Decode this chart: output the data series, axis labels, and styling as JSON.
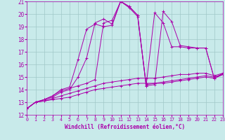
{
  "xlabel": "Windchill (Refroidissement éolien,°C)",
  "xlim": [
    0,
    23
  ],
  "ylim": [
    12,
    21
  ],
  "xticks": [
    0,
    1,
    2,
    3,
    4,
    5,
    6,
    7,
    8,
    9,
    10,
    11,
    12,
    13,
    14,
    15,
    16,
    17,
    18,
    19,
    20,
    21,
    22,
    23
  ],
  "yticks": [
    12,
    13,
    14,
    15,
    16,
    17,
    18,
    19,
    20,
    21
  ],
  "bg_color": "#c8eaea",
  "line_color": "#aa00aa",
  "grid_color": "#a0c8c8",
  "lines": [
    {
      "x": [
        0,
        1,
        2,
        3,
        4,
        5,
        6,
        7,
        8,
        9,
        10,
        11,
        12,
        13,
        14,
        15,
        16,
        17,
        18,
        19,
        20,
        21,
        22,
        23
      ],
      "y": [
        12.5,
        13.0,
        13.1,
        13.2,
        13.3,
        13.4,
        13.6,
        13.8,
        14.0,
        14.1,
        14.2,
        14.3,
        14.4,
        14.5,
        14.5,
        14.5,
        14.6,
        14.7,
        14.8,
        14.9,
        15.0,
        15.1,
        15.0,
        15.2
      ]
    },
    {
      "x": [
        0,
        1,
        2,
        3,
        4,
        5,
        6,
        7,
        8,
        9,
        10,
        11,
        12,
        13,
        14,
        15,
        16,
        17,
        18,
        19,
        20,
        21,
        22,
        23
      ],
      "y": [
        12.5,
        13.0,
        13.1,
        13.3,
        13.5,
        13.7,
        13.9,
        14.1,
        14.3,
        14.5,
        14.6,
        14.7,
        14.8,
        14.9,
        14.9,
        14.9,
        15.0,
        15.1,
        15.2,
        15.2,
        15.3,
        15.3,
        15.1,
        15.3
      ]
    },
    {
      "x": [
        0,
        1,
        2,
        3,
        4,
        5,
        6,
        7,
        8,
        9,
        10,
        11,
        12,
        13,
        14,
        15,
        16,
        17,
        18,
        19,
        20,
        21,
        22,
        23
      ],
      "y": [
        12.5,
        13.0,
        13.2,
        13.5,
        13.9,
        14.1,
        14.3,
        14.5,
        14.8,
        19.3,
        19.5,
        21.0,
        20.5,
        19.8,
        14.4,
        14.5,
        14.5,
        14.6,
        14.7,
        14.8,
        14.9,
        15.0,
        14.9,
        15.2
      ]
    },
    {
      "x": [
        0,
        1,
        2,
        3,
        4,
        5,
        6,
        7,
        8,
        9,
        10,
        11,
        12,
        13,
        14,
        15,
        16,
        17,
        18,
        19,
        20,
        21,
        22,
        23
      ],
      "y": [
        12.5,
        13.0,
        13.2,
        13.5,
        14.0,
        14.2,
        16.4,
        18.8,
        19.2,
        19.0,
        19.1,
        21.0,
        20.6,
        19.9,
        14.3,
        20.1,
        19.3,
        17.4,
        17.4,
        17.3,
        17.3,
        17.3,
        14.9,
        15.2
      ]
    },
    {
      "x": [
        0,
        1,
        2,
        3,
        4,
        5,
        6,
        7,
        8,
        9,
        10,
        11,
        12,
        13,
        14,
        15,
        16,
        17,
        18,
        19,
        20,
        21,
        22,
        23
      ],
      "y": [
        12.5,
        13.0,
        13.2,
        13.4,
        13.8,
        14.0,
        15.0,
        16.5,
        19.3,
        19.6,
        19.2,
        21.0,
        20.6,
        19.9,
        14.3,
        14.4,
        20.2,
        19.4,
        17.5,
        17.4,
        17.3,
        17.3,
        14.9,
        15.3
      ]
    }
  ]
}
